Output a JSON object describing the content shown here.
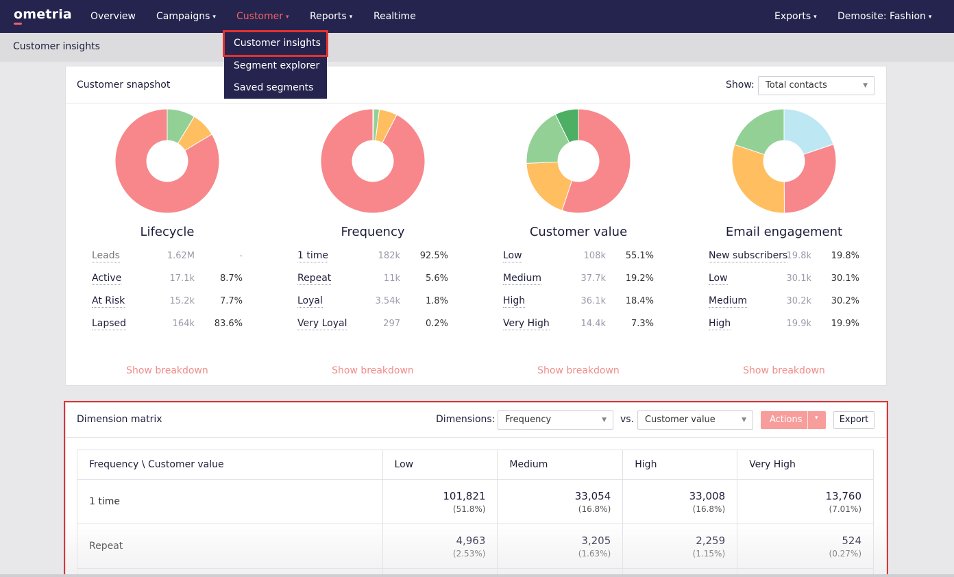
{
  "nav": {
    "logo": "ometria",
    "items": [
      {
        "label": "Overview",
        "caret": false,
        "active": false
      },
      {
        "label": "Campaigns",
        "caret": true,
        "active": false
      },
      {
        "label": "Customer",
        "caret": true,
        "active": true
      },
      {
        "label": "Reports",
        "caret": true,
        "active": false
      },
      {
        "label": "Realtime",
        "caret": false,
        "active": false
      }
    ],
    "right": [
      {
        "label": "Exports",
        "caret": true
      },
      {
        "label": "Demosite: Fashion",
        "caret": true
      }
    ]
  },
  "dropdown": {
    "items": [
      "Customer insights",
      "Segment explorer",
      "Saved segments"
    ],
    "selected": "Customer insights"
  },
  "subheader": {
    "title": "Customer insights"
  },
  "snapshot": {
    "title": "Customer snapshot",
    "show_label": "Show:",
    "show_value": "Total contacts",
    "show_breakdown": "Show breakdown",
    "charts": [
      {
        "title": "Lifecycle",
        "rows": [
          {
            "label": "Leads",
            "value": "1.62M",
            "pct": "-",
            "muted": true
          },
          {
            "label": "Active",
            "value": "17.1k",
            "pct": "8.7%"
          },
          {
            "label": "At Risk",
            "value": "15.2k",
            "pct": "7.7%"
          },
          {
            "label": "Lapsed",
            "value": "164k",
            "pct": "83.6%"
          }
        ],
        "slices": [
          {
            "name": "Active",
            "value": 8.7,
            "color": "#93d096"
          },
          {
            "name": "At Risk",
            "value": 7.7,
            "color": "#ffbe60"
          },
          {
            "name": "Lapsed",
            "value": 83.6,
            "color": "#f7878a"
          }
        ]
      },
      {
        "title": "Frequency",
        "rows": [
          {
            "label": "1 time",
            "value": "182k",
            "pct": "92.5%"
          },
          {
            "label": "Repeat",
            "value": "11k",
            "pct": "5.6%"
          },
          {
            "label": "Loyal",
            "value": "3.54k",
            "pct": "1.8%"
          },
          {
            "label": "Very Loyal",
            "value": "297",
            "pct": "0.2%"
          }
        ],
        "slices": [
          {
            "name": "1 time",
            "value": 92.5,
            "color": "#f7878a"
          },
          {
            "name": "Repeat",
            "value": 5.6,
            "color": "#ffbe60"
          },
          {
            "name": "Loyal",
            "value": 1.8,
            "color": "#93d096"
          },
          {
            "name": "Very Loyal",
            "value": 0.2,
            "color": "#4caf63"
          }
        ],
        "reverse": true
      },
      {
        "title": "Customer value",
        "rows": [
          {
            "label": "Low",
            "value": "108k",
            "pct": "55.1%"
          },
          {
            "label": "Medium",
            "value": "37.7k",
            "pct": "19.2%"
          },
          {
            "label": "High",
            "value": "36.1k",
            "pct": "18.4%"
          },
          {
            "label": "Very High",
            "value": "14.4k",
            "pct": "7.3%"
          }
        ],
        "slices": [
          {
            "name": "Low",
            "value": 55.1,
            "color": "#f7878a"
          },
          {
            "name": "Medium",
            "value": 19.2,
            "color": "#ffbe60"
          },
          {
            "name": "High",
            "value": 18.4,
            "color": "#93d096"
          },
          {
            "name": "Very High",
            "value": 7.3,
            "color": "#4caf63"
          }
        ]
      },
      {
        "title": "Email engagement",
        "rows": [
          {
            "label": "New subscribers",
            "value": "19.8k",
            "pct": "19.8%"
          },
          {
            "label": "Low",
            "value": "30.1k",
            "pct": "30.1%"
          },
          {
            "label": "Medium",
            "value": "30.2k",
            "pct": "30.2%"
          },
          {
            "label": "High",
            "value": "19.9k",
            "pct": "19.9%"
          }
        ],
        "slices": [
          {
            "name": "New subscribers",
            "value": 19.8,
            "color": "#bde7f3"
          },
          {
            "name": "Low",
            "value": 30.1,
            "color": "#f7878a"
          },
          {
            "name": "Medium",
            "value": 30.2,
            "color": "#ffbe60"
          },
          {
            "name": "High",
            "value": 19.9,
            "color": "#93d096"
          }
        ]
      }
    ]
  },
  "matrix": {
    "title": "Dimension matrix",
    "dimensions_label": "Dimensions:",
    "dim1": "Frequency",
    "vs_label": "vs.",
    "dim2": "Customer value",
    "actions_label": "Actions",
    "export_label": "Export",
    "headers": [
      "Frequency \\ Customer value",
      "Low",
      "Medium",
      "High",
      "Very High"
    ],
    "rows": [
      {
        "label": "1 time",
        "cells": [
          {
            "value": "101,821",
            "pct": "(51.8%)"
          },
          {
            "value": "33,054",
            "pct": "(16.8%)"
          },
          {
            "value": "33,008",
            "pct": "(16.8%)"
          },
          {
            "value": "13,760",
            "pct": "(7.01%)"
          }
        ]
      },
      {
        "label": "Repeat",
        "cells": [
          {
            "value": "4,963",
            "pct": "(2.53%)"
          },
          {
            "value": "3,205",
            "pct": "(1.63%)"
          },
          {
            "value": "2,259",
            "pct": "(1.15%)"
          },
          {
            "value": "524",
            "pct": "(0.27%)"
          }
        ]
      }
    ]
  },
  "colors": {
    "nav_bg": "#24244e",
    "accent": "#f16068",
    "highlight": "#e53131"
  }
}
